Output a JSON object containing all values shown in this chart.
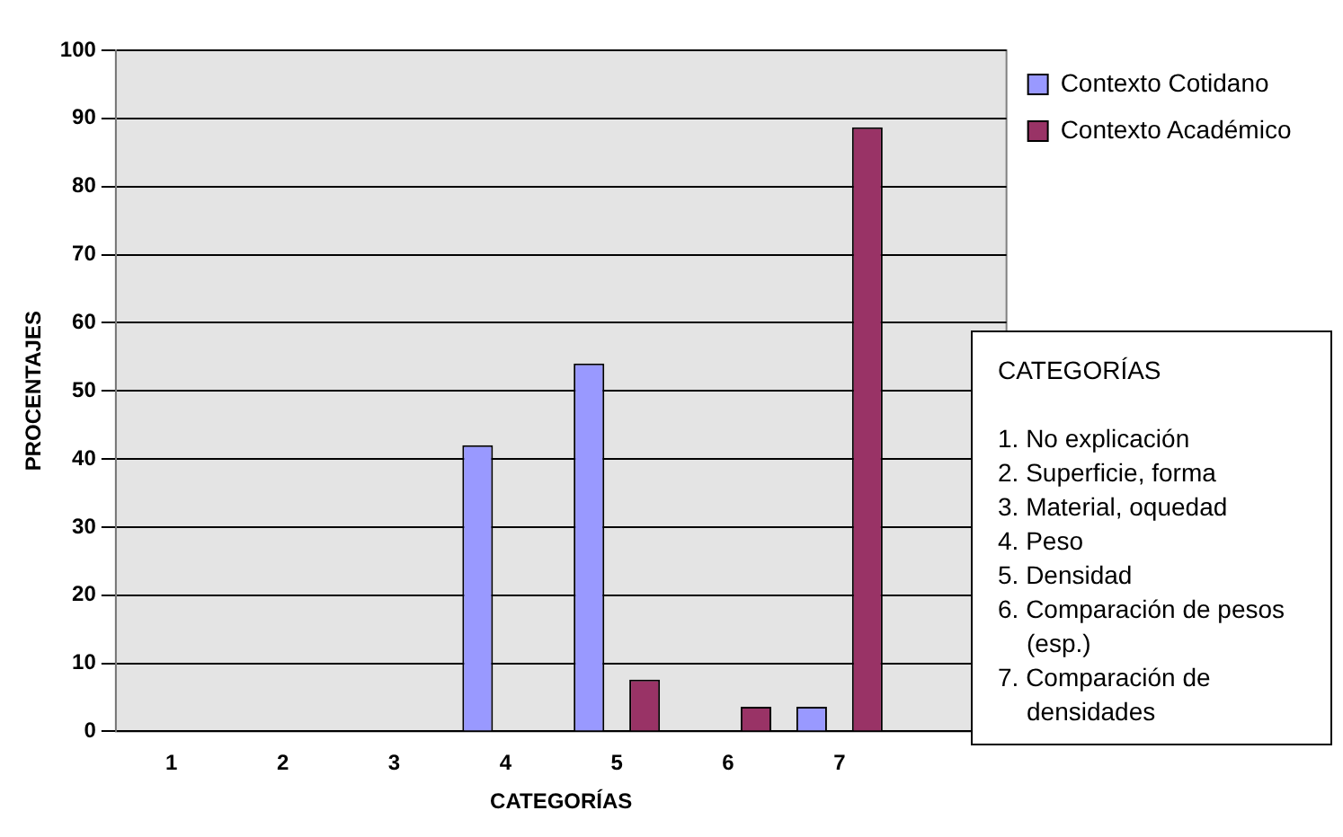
{
  "chart_data": {
    "type": "bar",
    "xlabel": "CATEGORÍAS",
    "ylabel": "PROCENTAJES",
    "categories": [
      "1",
      "2",
      "3",
      "4",
      "5",
      "6",
      "7",
      null
    ],
    "series": [
      {
        "name": "Contexto Cotidano",
        "color": "#9999ff",
        "values": [
          0,
          0,
          0,
          42,
          54,
          0,
          3.6,
          null
        ]
      },
      {
        "name": "Contexto Académico",
        "color": "#993366",
        "values": [
          0,
          0,
          0,
          0,
          7.6,
          3.6,
          88.7,
          null
        ]
      }
    ],
    "ylim": [
      0,
      100
    ],
    "yticks": [
      0,
      10,
      20,
      30,
      40,
      50,
      60,
      70,
      80,
      90,
      100
    ],
    "grid": "y",
    "legend": "right",
    "annotations": [
      "CATEGORÍAS",
      "1. No explicación",
      "2. Superficie, forma",
      "3. Material, oquedad",
      "4. Peso",
      "5. Densidad",
      "6. Comparación de pesos (esp.)",
      "7. Comparación de densidades"
    ]
  }
}
